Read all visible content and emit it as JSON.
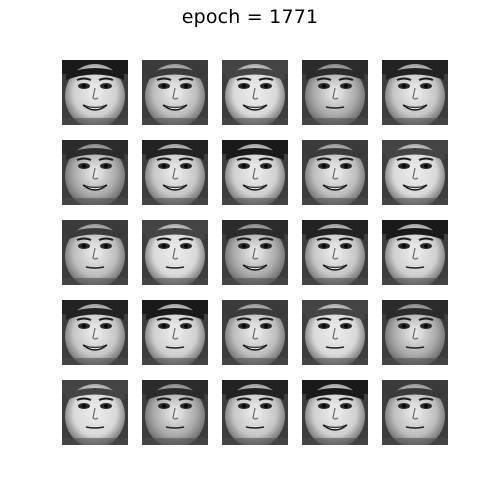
{
  "figure": {
    "title": "epoch = 1771"
  },
  "tiles": [
    {
      "row": 0,
      "col": 0,
      "expression": "smile"
    },
    {
      "row": 0,
      "col": 1,
      "expression": "smile"
    },
    {
      "row": 0,
      "col": 2,
      "expression": "smile"
    },
    {
      "row": 0,
      "col": 3,
      "expression": "neutral"
    },
    {
      "row": 0,
      "col": 4,
      "expression": "smile"
    },
    {
      "row": 1,
      "col": 0,
      "expression": "smile"
    },
    {
      "row": 1,
      "col": 1,
      "expression": "smile"
    },
    {
      "row": 1,
      "col": 2,
      "expression": "smile"
    },
    {
      "row": 1,
      "col": 3,
      "expression": "smile"
    },
    {
      "row": 1,
      "col": 4,
      "expression": "smile"
    },
    {
      "row": 2,
      "col": 0,
      "expression": "neutral"
    },
    {
      "row": 2,
      "col": 1,
      "expression": "neutral"
    },
    {
      "row": 2,
      "col": 2,
      "expression": "smile"
    },
    {
      "row": 2,
      "col": 3,
      "expression": "smile"
    },
    {
      "row": 2,
      "col": 4,
      "expression": "neutral"
    },
    {
      "row": 3,
      "col": 0,
      "expression": "smile"
    },
    {
      "row": 3,
      "col": 1,
      "expression": "neutral"
    },
    {
      "row": 3,
      "col": 2,
      "expression": "smile"
    },
    {
      "row": 3,
      "col": 3,
      "expression": "neutral"
    },
    {
      "row": 3,
      "col": 4,
      "expression": "neutral"
    },
    {
      "row": 4,
      "col": 0,
      "expression": "neutral"
    },
    {
      "row": 4,
      "col": 1,
      "expression": "neutral"
    },
    {
      "row": 4,
      "col": 2,
      "expression": "neutral"
    },
    {
      "row": 4,
      "col": 3,
      "expression": "smile"
    },
    {
      "row": 4,
      "col": 4,
      "expression": "neutral"
    }
  ]
}
